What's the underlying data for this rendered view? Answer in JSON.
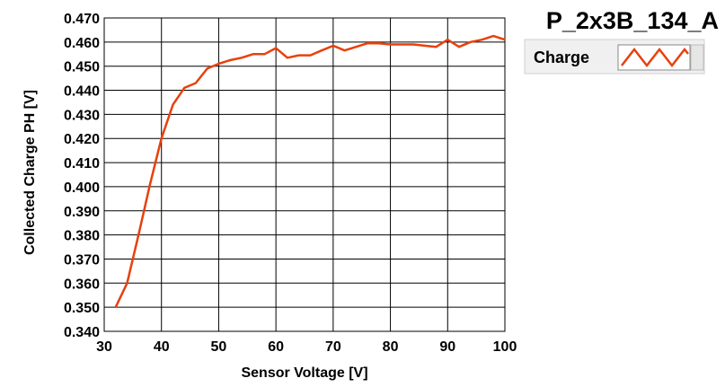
{
  "chart_data": {
    "type": "line",
    "title": "P_2x3B_134_A",
    "xlabel": "Sensor Voltage [V]",
    "ylabel": "Collected Charge PH [V]",
    "xlim": [
      30,
      100
    ],
    "ylim": [
      0.34,
      0.47
    ],
    "xticks": [
      30,
      40,
      50,
      60,
      70,
      80,
      90,
      100
    ],
    "yticks": [
      "0.340",
      "0.350",
      "0.360",
      "0.370",
      "0.380",
      "0.390",
      "0.400",
      "0.410",
      "0.420",
      "0.430",
      "0.440",
      "0.450",
      "0.460",
      "0.470"
    ],
    "grid": true,
    "legend": "top-right",
    "series": [
      {
        "name": "Charge",
        "color": "#e8400c",
        "x": [
          32,
          34,
          36,
          38,
          40,
          42,
          44,
          46,
          48,
          50,
          52,
          54,
          56,
          58,
          60,
          62,
          64,
          66,
          68,
          70,
          72,
          74,
          76,
          78,
          80,
          82,
          84,
          86,
          88,
          90,
          92,
          94,
          96,
          98,
          100
        ],
        "y": [
          0.35,
          0.36,
          0.38,
          0.401,
          0.42,
          0.434,
          0.441,
          0.443,
          0.449,
          0.451,
          0.4525,
          0.4535,
          0.455,
          0.455,
          0.4575,
          0.4535,
          0.4545,
          0.4545,
          0.4565,
          0.4585,
          0.4565,
          0.458,
          0.4595,
          0.4595,
          0.459,
          0.459,
          0.459,
          0.4585,
          0.458,
          0.461,
          0.458,
          0.46,
          0.461,
          0.4625,
          0.461
        ]
      }
    ]
  }
}
